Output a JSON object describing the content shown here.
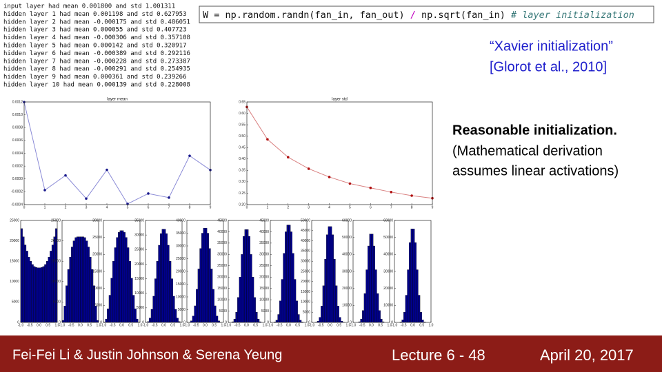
{
  "log": [
    "input layer had mean 0.001800 and std 1.001311",
    "hidden layer 1 had mean 0.001198 and std 0.627953",
    "hidden layer 2 had mean -0.000175 and std 0.486051",
    "hidden layer 3 had mean 0.000055 and std 0.407723",
    "hidden layer 4 had mean -0.000306 and std 0.357108",
    "hidden layer 5 had mean 0.000142 and std 0.320917",
    "hidden layer 6 had mean -0.000389 and std 0.292116",
    "hidden layer 7 had mean -0.000228 and std 0.273387",
    "hidden layer 8 had mean -0.000291 and std 0.254935",
    "hidden layer 9 had mean 0.000361 and std 0.239266",
    "hidden layer 10 had mean 0.000139 and std 0.228008"
  ],
  "code": [
    "W = np.random.randn(fan_in, fan_out) ",
    "/",
    " np.sqrt(fan_in) ",
    "# layer initialization"
  ],
  "quote": [
    "“Xavier initialization”",
    "[Glorot et al., 2010]"
  ],
  "note": {
    "title": "Reasonable initialization.",
    "lines": [
      "(Mathematical derivation",
      "assumes linear activations)"
    ]
  },
  "footer": {
    "authors": "Fei-Fei Li & Justin Johnson & Serena Yeung",
    "lecture": "Lecture 6 - 48",
    "date": "April 20, 2017"
  },
  "chart_data": [
    {
      "type": "line",
      "title": "layer mean",
      "color": "#8a8ad6",
      "marker_color": "#1a1a8c",
      "x": [
        0,
        1,
        2,
        3,
        4,
        5,
        6,
        7,
        8,
        9
      ],
      "values": [
        0.001198,
        -0.000175,
        5.5e-05,
        -0.000306,
        0.000142,
        -0.000389,
        -0.000228,
        -0.000291,
        0.000361,
        0.000139
      ],
      "xlim": [
        0,
        9
      ],
      "xticks": [
        0,
        1,
        2,
        3,
        4,
        5,
        6,
        7,
        8,
        9
      ],
      "ylim": [
        -0.0004,
        0.0012
      ],
      "yticks": [
        -0.0004,
        -0.0002,
        {
          "value": 0,
          "label": "0.0000"
        },
        0.0002,
        0.0004,
        0.0006,
        0.0008,
        {
          "value": 0.001,
          "label": "0.0010"
        },
        0.0012
      ]
    },
    {
      "type": "line",
      "title": "layer std",
      "color": "#d98080",
      "marker_color": "#b01010",
      "x": [
        0,
        1,
        2,
        3,
        4,
        5,
        6,
        7,
        8,
        9
      ],
      "values": [
        0.627953,
        0.486051,
        0.407723,
        0.357108,
        0.320917,
        0.292116,
        0.273387,
        0.254935,
        0.239266,
        0.228008
      ],
      "xlim": [
        0,
        9
      ],
      "xticks": [
        0,
        1,
        2,
        3,
        4,
        5,
        6,
        7,
        8,
        9
      ],
      "ylim": [
        0.2,
        0.65
      ],
      "yticks": [
        {
          "value": 0.2,
          "label": "0.20"
        },
        0.25,
        {
          "value": 0.3,
          "label": "0.30"
        },
        0.35,
        {
          "value": 0.4,
          "label": "0.40"
        },
        0.45,
        {
          "value": 0.5,
          "label": "0.50"
        },
        0.55,
        {
          "value": 0.6,
          "label": "0.60"
        },
        0.65
      ]
    },
    {
      "type": "histogram",
      "color": "#00008b",
      "bins": [
        -1,
        -0.9,
        -0.8,
        -0.7,
        -0.6,
        -0.5,
        -0.4,
        -0.3,
        -0.2,
        -0.1,
        0,
        0.1,
        0.2,
        0.3,
        0.4,
        0.5,
        0.6,
        0.7,
        0.8,
        0.9,
        1
      ],
      "values": [
        23000,
        21000,
        19000,
        17500,
        16000,
        15000,
        14200,
        13700,
        13500,
        13400,
        13400,
        13500,
        13700,
        14200,
        15000,
        16000,
        17500,
        19000,
        21000,
        23000
      ],
      "xlim": [
        -1,
        1
      ],
      "xticks": [
        {
          "value": -1,
          "label": "-1.0"
        },
        {
          "value": -0.5,
          "label": "-0.5"
        },
        {
          "value": 0,
          "label": "0.0"
        },
        {
          "value": 0.5,
          "label": "0.5"
        },
        {
          "value": 1,
          "label": "1.0"
        }
      ],
      "ylim": [
        0,
        25000
      ],
      "yticks": [
        0,
        5000,
        10000,
        15000,
        20000,
        25000
      ]
    },
    {
      "type": "histogram",
      "color": "#00008b",
      "bins": [
        -1,
        -0.9,
        -0.8,
        -0.7,
        -0.6,
        -0.5,
        -0.4,
        -0.3,
        -0.2,
        -0.1,
        0,
        0.1,
        0.2,
        0.3,
        0.4,
        0.5,
        0.6,
        0.7,
        0.8,
        0.9,
        1
      ],
      "values": [
        500,
        4000,
        9000,
        13000,
        16000,
        18500,
        20000,
        20800,
        21000,
        21000,
        21000,
        21000,
        20800,
        20000,
        18500,
        16000,
        13000,
        9000,
        4000,
        500
      ],
      "xlim": [
        -1,
        1
      ],
      "xticks": [
        {
          "value": -1,
          "label": "-1.0"
        },
        {
          "value": -0.5,
          "label": "-0.5"
        },
        {
          "value": 0,
          "label": "0.0"
        },
        {
          "value": 0.5,
          "label": "0.5"
        },
        {
          "value": 1,
          "label": "1.0"
        }
      ],
      "ylim": [
        0,
        25000
      ],
      "yticks": [
        0,
        5000,
        10000,
        15000,
        20000,
        25000
      ]
    },
    {
      "type": "histogram",
      "color": "#00008b",
      "bins": [
        -1,
        -0.9,
        -0.8,
        -0.7,
        -0.6,
        -0.5,
        -0.4,
        -0.3,
        -0.2,
        -0.1,
        0,
        0.1,
        0.2,
        0.3,
        0.4,
        0.5,
        0.6,
        0.7,
        0.8,
        0.9,
        1
      ],
      "values": [
        100,
        1000,
        4000,
        8000,
        13000,
        18000,
        22000,
        25000,
        26500,
        27000,
        27000,
        26500,
        25000,
        22000,
        18000,
        13000,
        8000,
        4000,
        1000,
        100
      ],
      "xlim": [
        -1,
        1
      ],
      "xticks": [
        {
          "value": -1,
          "label": "-1.0"
        },
        {
          "value": -0.5,
          "label": "-0.5"
        },
        {
          "value": 0,
          "label": "0.0"
        },
        {
          "value": 0.5,
          "label": "0.5"
        },
        {
          "value": 1,
          "label": "1.0"
        }
      ],
      "ylim": [
        0,
        30000
      ],
      "yticks": [
        0,
        5000,
        10000,
        15000,
        20000,
        25000,
        30000
      ]
    },
    {
      "type": "histogram",
      "color": "#00008b",
      "bins": [
        -1,
        -0.9,
        -0.8,
        -0.7,
        -0.6,
        -0.5,
        -0.4,
        -0.3,
        -0.2,
        -0.1,
        0,
        0.1,
        0.2,
        0.3,
        0.4,
        0.5,
        0.6,
        0.7,
        0.8,
        0.9,
        1
      ],
      "values": [
        0,
        300,
        1500,
        4500,
        9000,
        15000,
        21000,
        26500,
        30500,
        32000,
        32000,
        30500,
        26500,
        21000,
        15000,
        9000,
        4500,
        1500,
        300,
        0
      ],
      "xlim": [
        -1,
        1
      ],
      "xticks": [
        {
          "value": -1,
          "label": "-1.0"
        },
        {
          "value": -0.5,
          "label": "-0.5"
        },
        {
          "value": 0,
          "label": "0.0"
        },
        {
          "value": 0.5,
          "label": "0.5"
        },
        {
          "value": 1,
          "label": "1.0"
        }
      ],
      "ylim": [
        0,
        35000
      ],
      "yticks": [
        0,
        5000,
        10000,
        15000,
        20000,
        25000,
        30000,
        35000
      ]
    },
    {
      "type": "histogram",
      "color": "#00008b",
      "bins": [
        -1,
        -0.9,
        -0.8,
        -0.7,
        -0.6,
        -0.5,
        -0.4,
        -0.3,
        -0.2,
        -0.1,
        0,
        0.1,
        0.2,
        0.3,
        0.4,
        0.5,
        0.6,
        0.7,
        0.8,
        0.9,
        1
      ],
      "values": [
        0,
        100,
        600,
        2500,
        6500,
        13000,
        21000,
        29000,
        35000,
        37000,
        37000,
        35000,
        29000,
        21000,
        13000,
        6500,
        2500,
        600,
        100,
        0
      ],
      "xlim": [
        -1,
        1
      ],
      "xticks": [
        {
          "value": -1,
          "label": "-1.0"
        },
        {
          "value": -0.5,
          "label": "-0.5"
        },
        {
          "value": 0,
          "label": "0.0"
        },
        {
          "value": 0.5,
          "label": "0.5"
        },
        {
          "value": 1,
          "label": "1.0"
        }
      ],
      "ylim": [
        0,
        40000
      ],
      "yticks": [
        0,
        5000,
        10000,
        15000,
        20000,
        25000,
        30000,
        35000,
        40000
      ]
    },
    {
      "type": "histogram",
      "color": "#00008b",
      "bins": [
        -1,
        -0.9,
        -0.8,
        -0.7,
        -0.6,
        -0.5,
        -0.4,
        -0.3,
        -0.2,
        -0.1,
        0,
        0.1,
        0.2,
        0.3,
        0.4,
        0.5,
        0.6,
        0.7,
        0.8,
        0.9,
        1
      ],
      "values": [
        0,
        0,
        300,
        1500,
        4500,
        11000,
        20000,
        30000,
        38000,
        41000,
        41000,
        38000,
        30000,
        20000,
        11000,
        4500,
        1500,
        300,
        0,
        0
      ],
      "xlim": [
        -1,
        1
      ],
      "xticks": [
        {
          "value": -1,
          "label": "-1.0"
        },
        {
          "value": -0.5,
          "label": "-0.5"
        },
        {
          "value": 0,
          "label": "0.0"
        },
        {
          "value": 0.5,
          "label": "0.5"
        },
        {
          "value": 1,
          "label": "1.0"
        }
      ],
      "ylim": [
        0,
        45000
      ],
      "yticks": [
        0,
        5000,
        10000,
        15000,
        20000,
        25000,
        30000,
        35000,
        40000,
        45000
      ]
    },
    {
      "type": "histogram",
      "color": "#00008b",
      "bins": [
        -1,
        -0.9,
        -0.8,
        -0.7,
        -0.6,
        -0.5,
        -0.4,
        -0.3,
        -0.2,
        -0.1,
        0,
        0.1,
        0.2,
        0.3,
        0.4,
        0.5,
        0.6,
        0.7,
        0.8,
        0.9,
        1
      ],
      "values": [
        0,
        0,
        200,
        1000,
        3500,
        9500,
        19000,
        30500,
        40000,
        43000,
        43000,
        40000,
        30500,
        19000,
        9500,
        3500,
        1000,
        200,
        0,
        0
      ],
      "xlim": [
        -1,
        1
      ],
      "xticks": [
        {
          "value": -1,
          "label": "-1.0"
        },
        {
          "value": -0.5,
          "label": "-0.5"
        },
        {
          "value": 0,
          "label": "0.0"
        },
        {
          "value": 0.5,
          "label": "0.5"
        },
        {
          "value": 1,
          "label": "1.0"
        }
      ],
      "ylim": [
        0,
        45000
      ],
      "yticks": [
        0,
        5000,
        10000,
        15000,
        20000,
        25000,
        30000,
        35000,
        40000,
        45000
      ]
    },
    {
      "type": "histogram",
      "color": "#00008b",
      "bins": [
        -1,
        -0.9,
        -0.8,
        -0.7,
        -0.6,
        -0.5,
        -0.4,
        -0.3,
        -0.2,
        -0.1,
        0,
        0.1,
        0.2,
        0.3,
        0.4,
        0.5,
        0.6,
        0.7,
        0.8,
        0.9,
        1
      ],
      "values": [
        0,
        0,
        100,
        600,
        2500,
        8000,
        18000,
        31000,
        43000,
        47000,
        47000,
        43000,
        31000,
        18000,
        8000,
        2500,
        600,
        100,
        0,
        0
      ],
      "xlim": [
        -1,
        1
      ],
      "xticks": [
        {
          "value": -1,
          "label": "-1.0"
        },
        {
          "value": -0.5,
          "label": "-0.5"
        },
        {
          "value": 0,
          "label": "0.0"
        },
        {
          "value": 0.5,
          "label": "0.5"
        },
        {
          "value": 1,
          "label": "1.0"
        }
      ],
      "ylim": [
        0,
        50000
      ],
      "yticks": [
        0,
        5000,
        10000,
        15000,
        20000,
        25000,
        30000,
        35000,
        40000,
        45000,
        50000
      ]
    },
    {
      "type": "histogram",
      "color": "#00008b",
      "bins": [
        -1,
        -0.9,
        -0.8,
        -0.7,
        -0.6,
        -0.5,
        -0.4,
        -0.3,
        -0.2,
        -0.1,
        0,
        0.1,
        0.2,
        0.3,
        0.4,
        0.5,
        0.6,
        0.7,
        0.8,
        0.9,
        1
      ],
      "values": [
        0,
        0,
        0,
        400,
        2000,
        7000,
        17000,
        31000,
        45000,
        52000,
        52000,
        45000,
        31000,
        17000,
        7000,
        2000,
        400,
        0,
        0,
        0
      ],
      "xlim": [
        -1,
        1
      ],
      "xticks": [
        {
          "value": -1,
          "label": "-1.0"
        },
        {
          "value": -0.5,
          "label": "-0.5"
        },
        {
          "value": 0,
          "label": "0.0"
        },
        {
          "value": 0.5,
          "label": "0.5"
        },
        {
          "value": 1,
          "label": "1.0"
        }
      ],
      "ylim": [
        0,
        60000
      ],
      "yticks": [
        0,
        10000,
        20000,
        30000,
        40000,
        50000,
        60000
      ]
    },
    {
      "type": "histogram",
      "color": "#00008b",
      "bins": [
        -1,
        -0.9,
        -0.8,
        -0.7,
        -0.6,
        -0.5,
        -0.4,
        -0.3,
        -0.2,
        -0.1,
        0,
        0.1,
        0.2,
        0.3,
        0.4,
        0.5,
        0.6,
        0.7,
        0.8,
        0.9,
        1
      ],
      "values": [
        0,
        0,
        0,
        300,
        1500,
        6000,
        16000,
        31000,
        47000,
        55000,
        55000,
        47000,
        31000,
        16000,
        6000,
        1500,
        300,
        0,
        0,
        0
      ],
      "xlim": [
        -1,
        1
      ],
      "xticks": [
        {
          "value": -1,
          "label": "-1.0"
        },
        {
          "value": -0.5,
          "label": "-0.5"
        },
        {
          "value": 0,
          "label": "0.0"
        },
        {
          "value": 0.5,
          "label": "0.5"
        },
        {
          "value": 1,
          "label": "1.0"
        }
      ],
      "ylim": [
        0,
        60000
      ],
      "yticks": [
        0,
        10000,
        20000,
        30000,
        40000,
        50000,
        60000
      ]
    }
  ]
}
